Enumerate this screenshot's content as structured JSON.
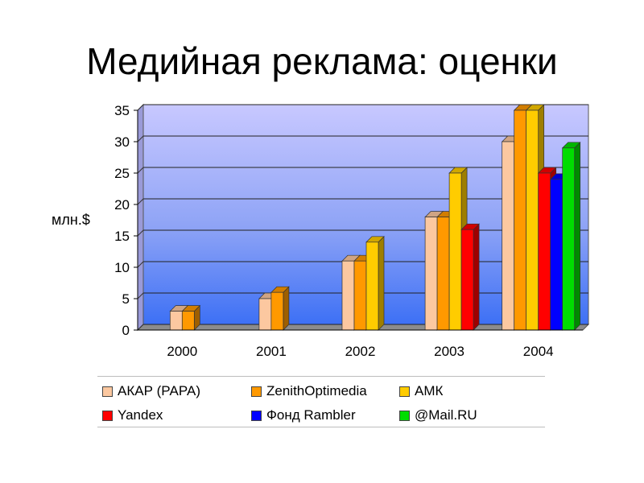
{
  "slide": {
    "title": "Медийная реклама: оценки"
  },
  "chart_data": {
    "type": "bar",
    "title": "",
    "xlabel": "",
    "ylabel": "млн.$",
    "ylim": [
      0,
      35
    ],
    "yticks": [
      "0",
      "5",
      "10",
      "15",
      "20",
      "25",
      "30",
      "35"
    ],
    "grid": true,
    "legend_position": "bottom",
    "categories": [
      "2000",
      "2001",
      "2002",
      "2003",
      "2004"
    ],
    "series": [
      {
        "name": "АКАР (РАРА)",
        "color": "#fcc8a0",
        "values": [
          3,
          5,
          11,
          18,
          30
        ]
      },
      {
        "name": "ZenithOptimedia",
        "color": "#ff9900",
        "values": [
          3,
          6,
          11,
          18,
          35
        ]
      },
      {
        "name": "АМК",
        "color": "#ffcc00",
        "values": [
          null,
          null,
          14,
          25,
          35
        ]
      },
      {
        "name": "Yandex",
        "color": "#ff0000",
        "values": [
          null,
          null,
          null,
          16,
          25
        ]
      },
      {
        "name": "Фонд Rambler",
        "color": "#0000ff",
        "values": [
          null,
          null,
          null,
          null,
          24
        ]
      },
      {
        "name": "@Mail.RU",
        "color": "#00dd00",
        "values": [
          null,
          null,
          null,
          null,
          29
        ]
      }
    ]
  }
}
